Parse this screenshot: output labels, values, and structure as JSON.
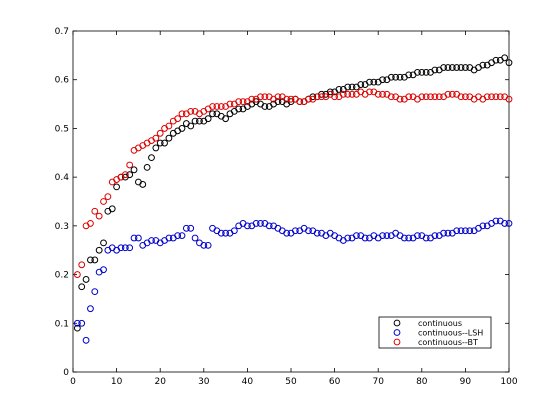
{
  "chart_data": {
    "type": "scatter",
    "title": "",
    "xlabel": "",
    "ylabel": "",
    "xlim": [
      0,
      100
    ],
    "ylim": [
      0,
      0.7
    ],
    "xticks": [
      0,
      10,
      20,
      30,
      40,
      50,
      60,
      70,
      80,
      90,
      100
    ],
    "yticks": [
      0,
      0.1,
      0.2,
      0.3,
      0.4,
      0.5,
      0.6,
      0.7
    ],
    "grid": false,
    "legend_position": "bottom-right",
    "marker": "open-circle",
    "series": [
      {
        "name": "continuous",
        "color": "#000000",
        "x": [
          1,
          2,
          3,
          4,
          5,
          6,
          7,
          8,
          9,
          10,
          11,
          12,
          13,
          14,
          15,
          16,
          17,
          18,
          19,
          20,
          21,
          22,
          23,
          24,
          25,
          26,
          27,
          28,
          29,
          30,
          31,
          32,
          33,
          34,
          35,
          36,
          37,
          38,
          39,
          40,
          41,
          42,
          43,
          44,
          45,
          46,
          47,
          48,
          49,
          50,
          51,
          52,
          53,
          54,
          55,
          56,
          57,
          58,
          59,
          60,
          61,
          62,
          63,
          64,
          65,
          66,
          67,
          68,
          69,
          70,
          71,
          72,
          73,
          74,
          75,
          76,
          77,
          78,
          79,
          80,
          81,
          82,
          83,
          84,
          85,
          86,
          87,
          88,
          89,
          90,
          91,
          92,
          93,
          94,
          95,
          96,
          97,
          98,
          99,
          100
        ],
        "y": [
          0.09,
          0.175,
          0.19,
          0.23,
          0.23,
          0.25,
          0.265,
          0.33,
          0.335,
          0.38,
          0.4,
          0.4,
          0.405,
          0.415,
          0.39,
          0.385,
          0.42,
          0.44,
          0.46,
          0.47,
          0.47,
          0.48,
          0.49,
          0.495,
          0.5,
          0.51,
          0.505,
          0.515,
          0.515,
          0.515,
          0.52,
          0.53,
          0.53,
          0.525,
          0.52,
          0.53,
          0.535,
          0.54,
          0.54,
          0.545,
          0.55,
          0.555,
          0.55,
          0.545,
          0.545,
          0.55,
          0.555,
          0.555,
          0.55,
          0.555,
          0.56,
          0.555,
          0.555,
          0.56,
          0.565,
          0.565,
          0.57,
          0.57,
          0.575,
          0.575,
          0.58,
          0.58,
          0.585,
          0.585,
          0.585,
          0.59,
          0.59,
          0.595,
          0.595,
          0.595,
          0.6,
          0.6,
          0.605,
          0.605,
          0.605,
          0.605,
          0.61,
          0.61,
          0.615,
          0.615,
          0.615,
          0.615,
          0.62,
          0.62,
          0.625,
          0.625,
          0.625,
          0.625,
          0.625,
          0.625,
          0.625,
          0.62,
          0.625,
          0.63,
          0.63,
          0.635,
          0.64,
          0.64,
          0.645,
          0.635
        ]
      },
      {
        "name": "continuous--LSH",
        "color": "#0000cc",
        "x": [
          1,
          2,
          3,
          4,
          5,
          6,
          7,
          8,
          9,
          10,
          11,
          12,
          13,
          14,
          15,
          16,
          17,
          18,
          19,
          20,
          21,
          22,
          23,
          24,
          25,
          26,
          27,
          28,
          29,
          30,
          31,
          32,
          33,
          34,
          35,
          36,
          37,
          38,
          39,
          40,
          41,
          42,
          43,
          44,
          45,
          46,
          47,
          48,
          49,
          50,
          51,
          52,
          53,
          54,
          55,
          56,
          57,
          58,
          59,
          60,
          61,
          62,
          63,
          64,
          65,
          66,
          67,
          68,
          69,
          70,
          71,
          72,
          73,
          74,
          75,
          76,
          77,
          78,
          79,
          80,
          81,
          82,
          83,
          84,
          85,
          86,
          87,
          88,
          89,
          90,
          91,
          92,
          93,
          94,
          95,
          96,
          97,
          98,
          99,
          100
        ],
        "y": [
          0.1,
          0.1,
          0.065,
          0.13,
          0.165,
          0.205,
          0.21,
          0.25,
          0.255,
          0.25,
          0.255,
          0.255,
          0.255,
          0.275,
          0.275,
          0.26,
          0.265,
          0.27,
          0.27,
          0.265,
          0.27,
          0.275,
          0.275,
          0.28,
          0.28,
          0.295,
          0.295,
          0.275,
          0.265,
          0.26,
          0.26,
          0.295,
          0.29,
          0.285,
          0.285,
          0.285,
          0.29,
          0.3,
          0.305,
          0.3,
          0.3,
          0.305,
          0.305,
          0.305,
          0.3,
          0.3,
          0.295,
          0.29,
          0.285,
          0.285,
          0.29,
          0.29,
          0.295,
          0.29,
          0.29,
          0.285,
          0.285,
          0.28,
          0.285,
          0.28,
          0.275,
          0.27,
          0.275,
          0.275,
          0.28,
          0.28,
          0.275,
          0.275,
          0.28,
          0.275,
          0.28,
          0.28,
          0.28,
          0.285,
          0.28,
          0.275,
          0.275,
          0.275,
          0.28,
          0.28,
          0.275,
          0.275,
          0.28,
          0.28,
          0.285,
          0.285,
          0.285,
          0.29,
          0.29,
          0.29,
          0.29,
          0.29,
          0.295,
          0.3,
          0.3,
          0.305,
          0.31,
          0.31,
          0.305,
          0.305
        ]
      },
      {
        "name": "continuous--BT",
        "color": "#dd0000",
        "x": [
          1,
          2,
          3,
          4,
          5,
          6,
          7,
          8,
          9,
          10,
          11,
          12,
          13,
          14,
          15,
          16,
          17,
          18,
          19,
          20,
          21,
          22,
          23,
          24,
          25,
          26,
          27,
          28,
          29,
          30,
          31,
          32,
          33,
          34,
          35,
          36,
          37,
          38,
          39,
          40,
          41,
          42,
          43,
          44,
          45,
          46,
          47,
          48,
          49,
          50,
          51,
          52,
          53,
          54,
          55,
          56,
          57,
          58,
          59,
          60,
          61,
          62,
          63,
          64,
          65,
          66,
          67,
          68,
          69,
          70,
          71,
          72,
          73,
          74,
          75,
          76,
          77,
          78,
          79,
          80,
          81,
          82,
          83,
          84,
          85,
          86,
          87,
          88,
          89,
          90,
          91,
          92,
          93,
          94,
          95,
          96,
          97,
          98,
          99,
          100
        ],
        "y": [
          0.2,
          0.22,
          0.3,
          0.305,
          0.33,
          0.32,
          0.35,
          0.36,
          0.39,
          0.395,
          0.4,
          0.405,
          0.425,
          0.455,
          0.46,
          0.465,
          0.47,
          0.475,
          0.48,
          0.49,
          0.5,
          0.505,
          0.515,
          0.52,
          0.53,
          0.53,
          0.535,
          0.535,
          0.53,
          0.535,
          0.54,
          0.545,
          0.545,
          0.545,
          0.545,
          0.55,
          0.55,
          0.555,
          0.555,
          0.555,
          0.56,
          0.56,
          0.565,
          0.565,
          0.565,
          0.56,
          0.565,
          0.565,
          0.56,
          0.56,
          0.56,
          0.555,
          0.555,
          0.56,
          0.56,
          0.565,
          0.565,
          0.565,
          0.57,
          0.565,
          0.565,
          0.57,
          0.57,
          0.57,
          0.57,
          0.575,
          0.57,
          0.575,
          0.575,
          0.57,
          0.57,
          0.57,
          0.565,
          0.565,
          0.56,
          0.56,
          0.565,
          0.565,
          0.56,
          0.565,
          0.565,
          0.565,
          0.565,
          0.565,
          0.565,
          0.57,
          0.57,
          0.57,
          0.565,
          0.565,
          0.565,
          0.56,
          0.565,
          0.56,
          0.565,
          0.565,
          0.565,
          0.565,
          0.565,
          0.56
        ]
      }
    ]
  }
}
